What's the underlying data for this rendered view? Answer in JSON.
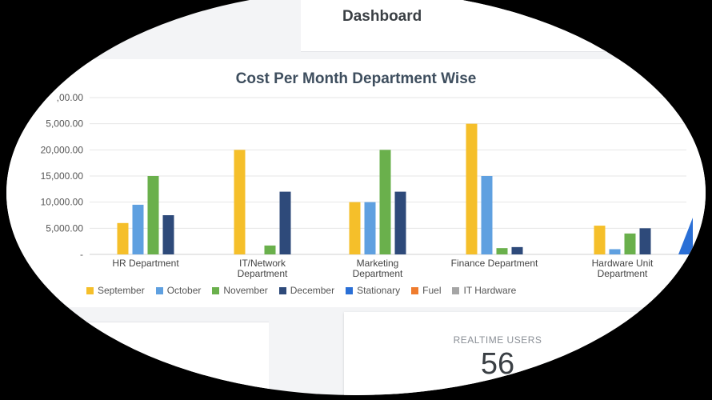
{
  "header": {
    "title": "Dashboard"
  },
  "realtime": {
    "label": "REALTIME USERS",
    "value": "56"
  },
  "chart_data": {
    "type": "bar",
    "title": "Cost Per Month Department Wise",
    "categories": [
      [
        "HR Department"
      ],
      [
        "IT/Network",
        "Department"
      ],
      [
        "Marketing",
        "Department"
      ],
      [
        "Finance Department"
      ],
      [
        "Hardware Unit",
        "Department"
      ]
    ],
    "y_tick_labels": [
      ",00.00",
      "5,000.00",
      "20,000.00",
      "15,000.00",
      "10,000.00",
      "5,000.00",
      "-"
    ],
    "ylim": [
      0,
      30000
    ],
    "grid": true,
    "legend_position": "bottom",
    "series": [
      {
        "name": "September",
        "color": "#f5bf2a",
        "values": [
          6000,
          20000,
          10000,
          25000,
          5500
        ]
      },
      {
        "name": "October",
        "color": "#5fa0e0",
        "values": [
          9500,
          0,
          10000,
          15000,
          1000
        ]
      },
      {
        "name": "November",
        "color": "#6ab04c",
        "values": [
          15000,
          1700,
          20000,
          1200,
          4000
        ]
      },
      {
        "name": "December",
        "color": "#2e4a7a",
        "values": [
          7500,
          12000,
          12000,
          1400,
          5000
        ]
      },
      {
        "name": "Stationary",
        "color": "#2a6fd6",
        "values": [
          0,
          0,
          0,
          0,
          0
        ]
      },
      {
        "name": "Fuel",
        "color": "#ef7c2e",
        "values": [
          0,
          0,
          0,
          0,
          0
        ]
      },
      {
        "name": "IT Hardware",
        "color": "#a5a5a5",
        "values": [
          0,
          0,
          0,
          0,
          0
        ]
      }
    ]
  }
}
